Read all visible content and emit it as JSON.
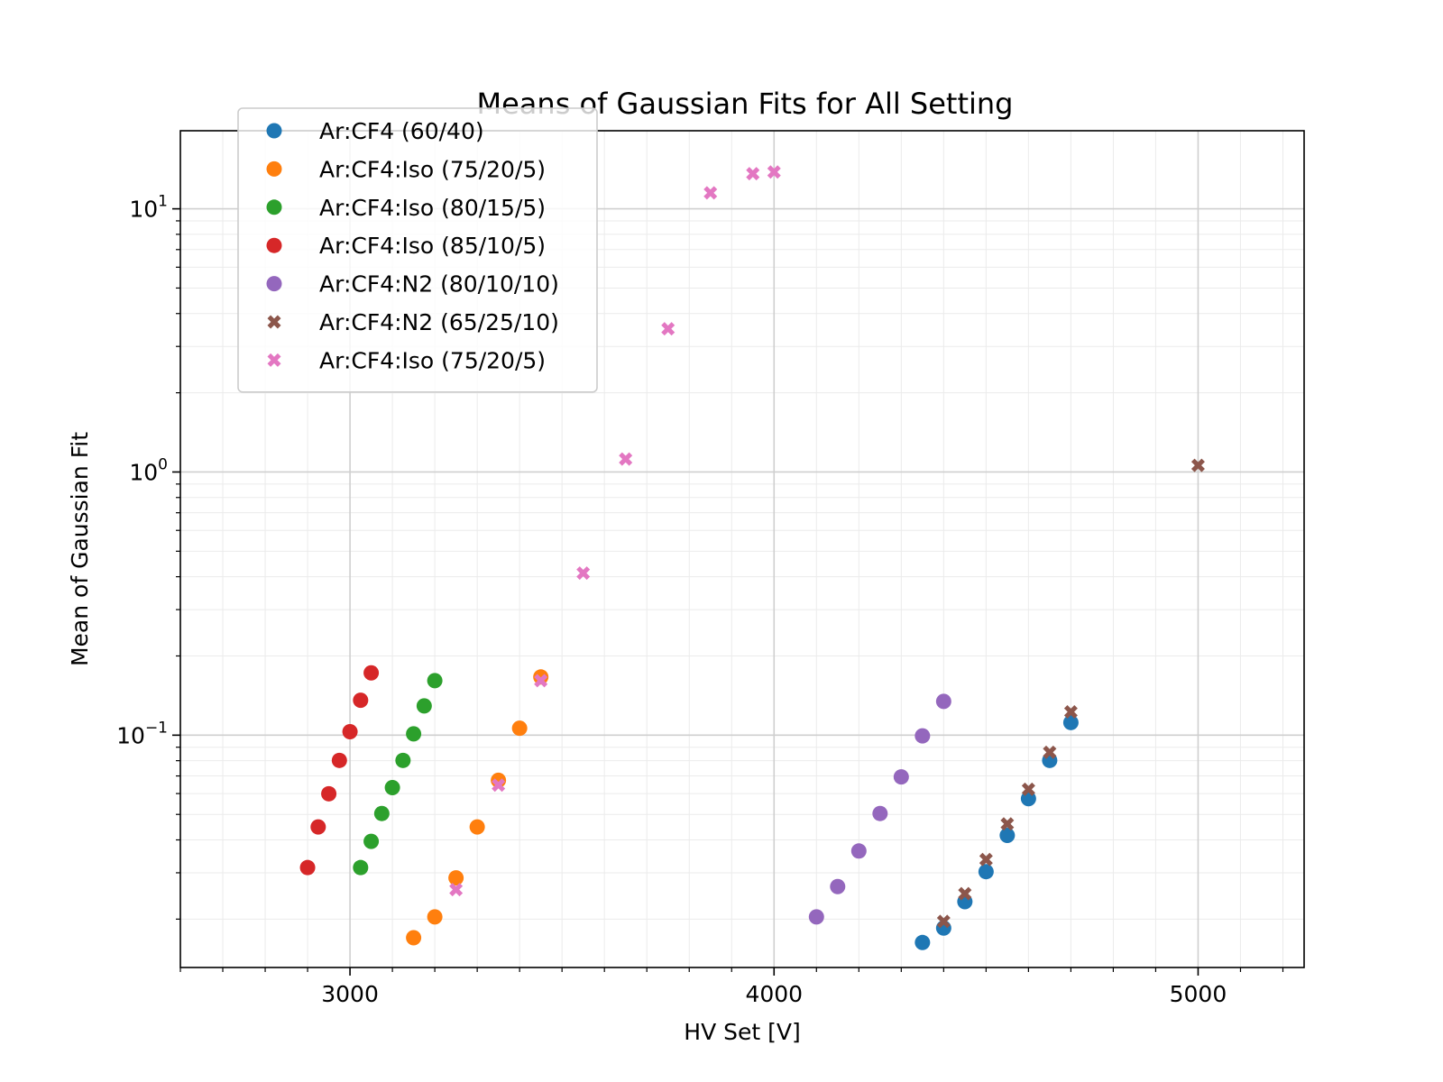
{
  "chart_data": {
    "type": "scatter",
    "title": "Means of Gaussian Fits for All Setting",
    "xlabel": "HV Set [V]",
    "ylabel": "Mean of Gaussian Fit",
    "xlim": [
      2600,
      5250
    ],
    "ylim": [
      0.0131,
      19.8
    ],
    "yscale": "log",
    "grid": "major and minor",
    "legend_position": "upper-left",
    "x_ticks": [
      {
        "value": 3000,
        "label": "3000"
      },
      {
        "value": 4000,
        "label": "4000"
      },
      {
        "value": 5000,
        "label": "5000"
      }
    ],
    "y_ticks": [
      {
        "value": 0.1,
        "base": "10",
        "exp": "−1"
      },
      {
        "value": 1,
        "base": "10",
        "exp": "0"
      },
      {
        "value": 10,
        "base": "10",
        "exp": "1"
      }
    ],
    "series": [
      {
        "name": "Ar:CF4 (60/40)",
        "marker": "circle",
        "color": "#1f77b4",
        "x": [
          4350,
          4400,
          4450,
          4500,
          4550,
          4600,
          4650,
          4700
        ],
        "y": [
          0.0163,
          0.0185,
          0.0233,
          0.0303,
          0.0416,
          0.0574,
          0.0802,
          0.1117
        ]
      },
      {
        "name": "Ar:CF4:Iso (75/20/5)",
        "marker": "circle",
        "color": "#ff7f0e",
        "x": [
          3150,
          3200,
          3250,
          3300,
          3350,
          3400,
          3450
        ],
        "y": [
          0.017,
          0.0204,
          0.0287,
          0.0448,
          0.0674,
          0.1063,
          0.1664
        ]
      },
      {
        "name": "Ar:CF4:Iso (80/15/5)",
        "marker": "circle",
        "color": "#2ca02c",
        "x": [
          3025,
          3050,
          3075,
          3100,
          3125,
          3150,
          3175,
          3200
        ],
        "y": [
          0.0314,
          0.0395,
          0.0504,
          0.0632,
          0.0802,
          0.1012,
          0.1292,
          0.1611
        ]
      },
      {
        "name": "Ar:CF4:Iso (85/10/5)",
        "marker": "circle",
        "color": "#d62728",
        "x": [
          2900,
          2925,
          2950,
          2975,
          3000,
          3025,
          3050
        ],
        "y": [
          0.0314,
          0.0448,
          0.0599,
          0.0802,
          0.1031,
          0.1357,
          0.1725
        ]
      },
      {
        "name": "Ar:CF4:N2 (80/10/10)",
        "marker": "circle",
        "color": "#9467bd",
        "x": [
          4100,
          4150,
          4200,
          4250,
          4300,
          4350,
          4400
        ],
        "y": [
          0.0204,
          0.0266,
          0.0363,
          0.0504,
          0.0694,
          0.0994,
          0.1344
        ]
      },
      {
        "name": "Ar:CF4:N2 (65/25/10)",
        "marker": "x",
        "color": "#8c564b",
        "x": [
          4400,
          4450,
          4500,
          4550,
          4600,
          4650,
          4700,
          5000
        ],
        "y": [
          0.0196,
          0.025,
          0.0337,
          0.046,
          0.0623,
          0.0861,
          0.1226,
          1.06
        ]
      },
      {
        "name": "Ar:CF4:Iso (75/20/5)",
        "marker": "x",
        "color": "#e377c2",
        "x": [
          3250,
          3350,
          3450,
          3550,
          3650,
          3750,
          3850,
          3950,
          4000
        ],
        "y": [
          0.0259,
          0.0646,
          0.1611,
          0.413,
          1.12,
          3.5,
          11.5,
          13.6,
          13.8
        ]
      }
    ]
  }
}
